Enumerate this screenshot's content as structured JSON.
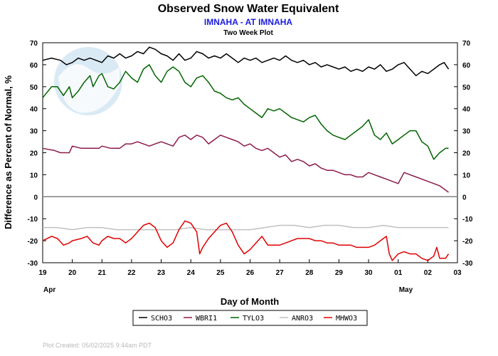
{
  "chart_data": {
    "type": "line",
    "title": "Observed Snow Water Equivalent",
    "subtitle": "IMNAHA - AT IMNAHA",
    "subtitle2": "Two Week Plot",
    "xlabel": "Day of Month",
    "ylabel": "Difference as Percent of Normal, %",
    "x_ticks": [
      "19",
      "20",
      "21",
      "22",
      "23",
      "24",
      "25",
      "26",
      "27",
      "28",
      "29",
      "30",
      "01",
      "02",
      "03"
    ],
    "month_labels": [
      {
        "label": "Apr",
        "day": 0
      },
      {
        "label": "May",
        "day": 12.0
      }
    ],
    "xlim": [
      0,
      14
    ],
    "ylim": [
      -30,
      70
    ],
    "y_ticks": [
      70,
      60,
      50,
      40,
      30,
      20,
      10,
      0,
      -10,
      -20,
      -30
    ],
    "zero_line": true,
    "grid": false,
    "legend_position": "bottom",
    "footer": "Plot Created:  05/02/2025 9:44am PDT",
    "colors": {
      "SCHO3": "#000000",
      "WBRI1": "#8b1a4a",
      "TYLO3": "#006400",
      "ANRO3": "#c0c0c0",
      "MHWO3": "#e00000",
      "zero_line": "#808080"
    },
    "series": [
      {
        "name": "SCHO3",
        "color": "#000000",
        "points": [
          [
            0,
            62
          ],
          [
            0.3,
            63
          ],
          [
            0.6,
            62
          ],
          [
            0.8,
            60
          ],
          [
            1.0,
            61
          ],
          [
            1.2,
            63
          ],
          [
            1.4,
            62
          ],
          [
            1.6,
            63
          ],
          [
            1.8,
            62
          ],
          [
            2.0,
            61
          ],
          [
            2.2,
            64
          ],
          [
            2.4,
            63
          ],
          [
            2.6,
            65
          ],
          [
            2.8,
            63
          ],
          [
            3.0,
            64
          ],
          [
            3.2,
            66
          ],
          [
            3.4,
            65
          ],
          [
            3.6,
            68
          ],
          [
            3.8,
            67
          ],
          [
            4.0,
            65
          ],
          [
            4.2,
            64
          ],
          [
            4.4,
            62
          ],
          [
            4.6,
            65
          ],
          [
            4.8,
            62
          ],
          [
            5.0,
            63
          ],
          [
            5.2,
            66
          ],
          [
            5.4,
            65
          ],
          [
            5.6,
            63
          ],
          [
            5.8,
            64
          ],
          [
            6.0,
            63
          ],
          [
            6.2,
            65
          ],
          [
            6.4,
            63
          ],
          [
            6.6,
            61
          ],
          [
            6.8,
            63
          ],
          [
            7.0,
            62
          ],
          [
            7.2,
            63
          ],
          [
            7.4,
            61
          ],
          [
            7.6,
            62
          ],
          [
            7.8,
            63
          ],
          [
            8.0,
            62
          ],
          [
            8.2,
            64
          ],
          [
            8.4,
            62
          ],
          [
            8.6,
            61
          ],
          [
            8.8,
            62
          ],
          [
            9.0,
            60
          ],
          [
            9.2,
            61
          ],
          [
            9.4,
            59
          ],
          [
            9.6,
            60
          ],
          [
            9.8,
            59
          ],
          [
            10.0,
            58
          ],
          [
            10.2,
            59
          ],
          [
            10.4,
            57
          ],
          [
            10.6,
            58
          ],
          [
            10.8,
            57
          ],
          [
            11.0,
            59
          ],
          [
            11.2,
            58
          ],
          [
            11.4,
            60
          ],
          [
            11.6,
            57
          ],
          [
            11.8,
            58
          ],
          [
            12.0,
            60
          ],
          [
            12.2,
            61
          ],
          [
            12.4,
            58
          ],
          [
            12.6,
            55
          ],
          [
            12.8,
            57
          ],
          [
            13.0,
            56
          ],
          [
            13.2,
            58
          ],
          [
            13.4,
            60
          ],
          [
            13.55,
            61
          ],
          [
            13.7,
            58
          ]
        ]
      },
      {
        "name": "WBRI1",
        "color": "#8b1a4a",
        "points": [
          [
            0,
            22
          ],
          [
            0.4,
            21
          ],
          [
            0.6,
            20
          ],
          [
            0.9,
            20
          ],
          [
            1.0,
            23
          ],
          [
            1.3,
            22
          ],
          [
            1.6,
            22
          ],
          [
            1.9,
            22
          ],
          [
            2.0,
            23
          ],
          [
            2.3,
            22
          ],
          [
            2.6,
            22
          ],
          [
            2.8,
            24
          ],
          [
            3.0,
            24
          ],
          [
            3.2,
            25
          ],
          [
            3.4,
            24
          ],
          [
            3.6,
            23
          ],
          [
            3.8,
            24
          ],
          [
            4.0,
            25
          ],
          [
            4.2,
            24
          ],
          [
            4.4,
            23
          ],
          [
            4.6,
            27
          ],
          [
            4.8,
            28
          ],
          [
            5.0,
            26
          ],
          [
            5.2,
            28
          ],
          [
            5.4,
            27
          ],
          [
            5.6,
            24
          ],
          [
            5.8,
            26
          ],
          [
            6.0,
            28
          ],
          [
            6.2,
            27
          ],
          [
            6.4,
            26
          ],
          [
            6.6,
            25
          ],
          [
            6.8,
            23
          ],
          [
            7.0,
            24
          ],
          [
            7.2,
            22
          ],
          [
            7.4,
            21
          ],
          [
            7.6,
            22
          ],
          [
            7.8,
            20
          ],
          [
            8.0,
            18
          ],
          [
            8.2,
            19
          ],
          [
            8.4,
            16
          ],
          [
            8.6,
            17
          ],
          [
            8.8,
            16
          ],
          [
            9.0,
            14
          ],
          [
            9.2,
            15
          ],
          [
            9.4,
            13
          ],
          [
            9.6,
            12
          ],
          [
            9.8,
            12
          ],
          [
            10.0,
            11
          ],
          [
            10.2,
            10
          ],
          [
            10.4,
            10
          ],
          [
            10.6,
            9
          ],
          [
            10.8,
            9
          ],
          [
            11.0,
            11
          ],
          [
            11.2,
            10
          ],
          [
            11.4,
            9
          ],
          [
            11.6,
            8
          ],
          [
            11.8,
            7
          ],
          [
            12.0,
            6
          ],
          [
            12.2,
            11
          ],
          [
            12.4,
            10
          ],
          [
            12.6,
            9
          ],
          [
            12.8,
            8
          ],
          [
            13.0,
            7
          ],
          [
            13.2,
            6
          ],
          [
            13.4,
            5
          ],
          [
            13.6,
            3
          ],
          [
            13.7,
            2
          ]
        ]
      },
      {
        "name": "TYLO3",
        "color": "#006400",
        "points": [
          [
            0,
            45
          ],
          [
            0.3,
            50
          ],
          [
            0.5,
            50
          ],
          [
            0.7,
            46
          ],
          [
            0.9,
            50
          ],
          [
            1.0,
            45
          ],
          [
            1.2,
            48
          ],
          [
            1.4,
            52
          ],
          [
            1.6,
            55
          ],
          [
            1.7,
            50
          ],
          [
            1.9,
            55
          ],
          [
            2.0,
            56
          ],
          [
            2.2,
            50
          ],
          [
            2.4,
            49
          ],
          [
            2.6,
            52
          ],
          [
            2.8,
            57
          ],
          [
            3.0,
            54
          ],
          [
            3.2,
            52
          ],
          [
            3.4,
            58
          ],
          [
            3.6,
            60
          ],
          [
            3.8,
            55
          ],
          [
            4.0,
            52
          ],
          [
            4.2,
            57
          ],
          [
            4.4,
            59
          ],
          [
            4.6,
            57
          ],
          [
            4.8,
            52
          ],
          [
            5.0,
            50
          ],
          [
            5.2,
            54
          ],
          [
            5.4,
            55
          ],
          [
            5.6,
            52
          ],
          [
            5.8,
            48
          ],
          [
            6.0,
            47
          ],
          [
            6.2,
            45
          ],
          [
            6.4,
            44
          ],
          [
            6.6,
            45
          ],
          [
            6.8,
            42
          ],
          [
            7.0,
            40
          ],
          [
            7.2,
            38
          ],
          [
            7.4,
            36
          ],
          [
            7.6,
            40
          ],
          [
            7.8,
            39
          ],
          [
            8.0,
            40
          ],
          [
            8.2,
            38
          ],
          [
            8.4,
            36
          ],
          [
            8.6,
            35
          ],
          [
            8.8,
            34
          ],
          [
            9.0,
            36
          ],
          [
            9.2,
            37
          ],
          [
            9.4,
            33
          ],
          [
            9.6,
            30
          ],
          [
            9.8,
            28
          ],
          [
            10.0,
            27
          ],
          [
            10.2,
            26
          ],
          [
            10.4,
            28
          ],
          [
            10.6,
            30
          ],
          [
            10.8,
            32
          ],
          [
            11.0,
            35
          ],
          [
            11.2,
            28
          ],
          [
            11.4,
            26
          ],
          [
            11.6,
            29
          ],
          [
            11.8,
            24
          ],
          [
            12.0,
            26
          ],
          [
            12.2,
            28
          ],
          [
            12.4,
            30
          ],
          [
            12.6,
            30
          ],
          [
            12.8,
            25
          ],
          [
            13.0,
            23
          ],
          [
            13.2,
            17
          ],
          [
            13.4,
            20
          ],
          [
            13.6,
            22
          ],
          [
            13.7,
            22
          ]
        ]
      },
      {
        "name": "ANRO3",
        "color": "#c0c0c0",
        "points": [
          [
            0,
            -14
          ],
          [
            0.5,
            -14
          ],
          [
            1.0,
            -15
          ],
          [
            1.5,
            -14
          ],
          [
            2.0,
            -14
          ],
          [
            2.5,
            -15
          ],
          [
            3.0,
            -15
          ],
          [
            3.5,
            -15
          ],
          [
            4.0,
            -15
          ],
          [
            4.5,
            -15
          ],
          [
            5.0,
            -14
          ],
          [
            5.5,
            -15
          ],
          [
            6.0,
            -15
          ],
          [
            6.5,
            -15
          ],
          [
            7.0,
            -15
          ],
          [
            7.5,
            -14
          ],
          [
            8.0,
            -13
          ],
          [
            8.5,
            -13
          ],
          [
            9.0,
            -14
          ],
          [
            9.5,
            -13
          ],
          [
            10.0,
            -13
          ],
          [
            10.5,
            -14
          ],
          [
            11.0,
            -14
          ],
          [
            11.5,
            -13
          ],
          [
            12.0,
            -14
          ],
          [
            12.5,
            -14
          ],
          [
            13.0,
            -14
          ],
          [
            13.5,
            -14
          ],
          [
            13.7,
            -14
          ]
        ]
      },
      {
        "name": "MHWO3",
        "color": "#e00000",
        "points": [
          [
            0,
            -20
          ],
          [
            0.3,
            -18
          ],
          [
            0.5,
            -19
          ],
          [
            0.7,
            -22
          ],
          [
            0.9,
            -21
          ],
          [
            1.0,
            -20
          ],
          [
            1.3,
            -19
          ],
          [
            1.5,
            -18
          ],
          [
            1.7,
            -21
          ],
          [
            1.9,
            -22
          ],
          [
            2.0,
            -20
          ],
          [
            2.2,
            -18
          ],
          [
            2.4,
            -19
          ],
          [
            2.6,
            -19
          ],
          [
            2.8,
            -21
          ],
          [
            3.0,
            -19
          ],
          [
            3.2,
            -16
          ],
          [
            3.4,
            -13
          ],
          [
            3.6,
            -12
          ],
          [
            3.8,
            -14
          ],
          [
            4.0,
            -20
          ],
          [
            4.2,
            -23
          ],
          [
            4.4,
            -21
          ],
          [
            4.6,
            -15
          ],
          [
            4.8,
            -11
          ],
          [
            5.0,
            -12
          ],
          [
            5.2,
            -16
          ],
          [
            5.3,
            -26
          ],
          [
            5.4,
            -23
          ],
          [
            5.6,
            -19
          ],
          [
            5.8,
            -16
          ],
          [
            6.0,
            -13
          ],
          [
            6.2,
            -12
          ],
          [
            6.4,
            -16
          ],
          [
            6.6,
            -22
          ],
          [
            6.8,
            -26
          ],
          [
            7.0,
            -24
          ],
          [
            7.2,
            -21
          ],
          [
            7.4,
            -18
          ],
          [
            7.6,
            -22
          ],
          [
            7.8,
            -22
          ],
          [
            8.0,
            -22
          ],
          [
            8.2,
            -21
          ],
          [
            8.4,
            -20
          ],
          [
            8.6,
            -19
          ],
          [
            8.8,
            -19
          ],
          [
            9.0,
            -19
          ],
          [
            9.2,
            -20
          ],
          [
            9.4,
            -20
          ],
          [
            9.6,
            -21
          ],
          [
            9.8,
            -21
          ],
          [
            10.0,
            -22
          ],
          [
            10.2,
            -22
          ],
          [
            10.4,
            -22
          ],
          [
            10.6,
            -23
          ],
          [
            10.8,
            -23
          ],
          [
            11.0,
            -23
          ],
          [
            11.2,
            -22
          ],
          [
            11.4,
            -20
          ],
          [
            11.6,
            -18
          ],
          [
            11.7,
            -26
          ],
          [
            11.8,
            -29
          ],
          [
            12.0,
            -26
          ],
          [
            12.2,
            -25
          ],
          [
            12.4,
            -26
          ],
          [
            12.6,
            -26
          ],
          [
            12.8,
            -28
          ],
          [
            13.0,
            -29
          ],
          [
            13.2,
            -27
          ],
          [
            13.3,
            -23
          ],
          [
            13.4,
            -28
          ],
          [
            13.6,
            -28
          ],
          [
            13.7,
            -26
          ]
        ]
      }
    ]
  }
}
